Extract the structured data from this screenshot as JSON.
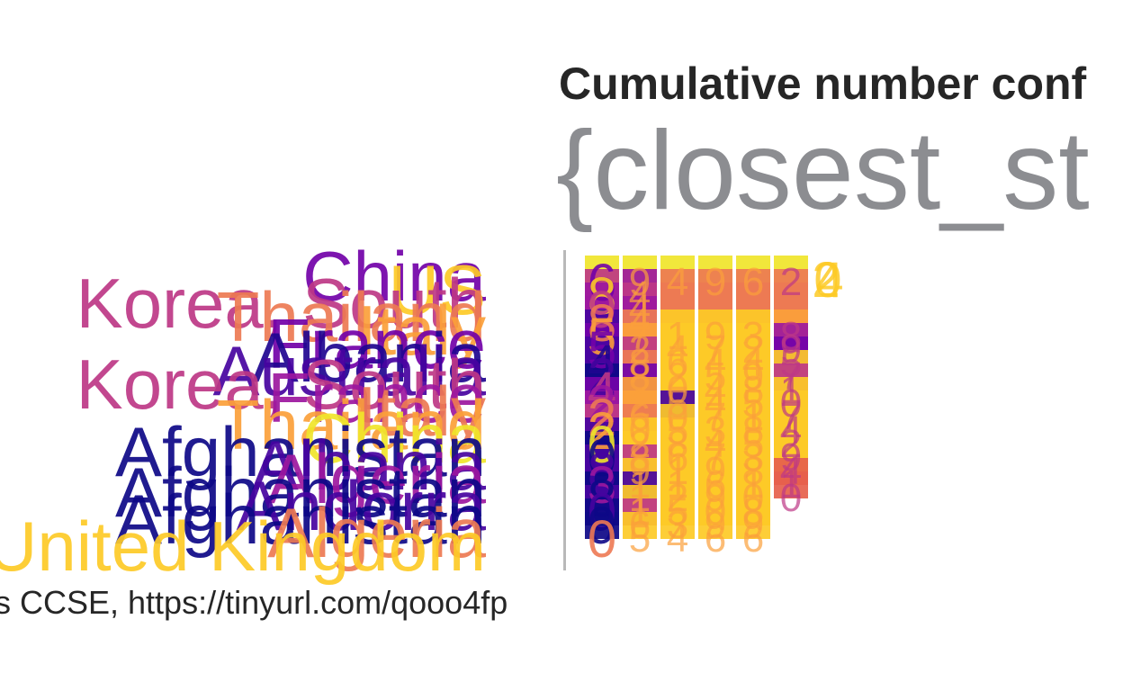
{
  "title": "Cumulative number conf",
  "subtitle": "{closest_st",
  "source": "s CCSE, https://tinyurl.com/qooo4fp",
  "chart_data": {
    "type": "table",
    "grid": false,
    "palette": [
      "#0d0887",
      "#46039f",
      "#7201a8",
      "#9c179e",
      "#bd3786",
      "#d8576b",
      "#ed7953",
      "#fb9f3a",
      "#fdca26",
      "#f0f921"
    ],
    "rows": [
      {
        "country": "China",
        "color": "#7201a8",
        "values": [
          "6",
          "9",
          "4",
          "9",
          "6",
          "2"
        ],
        "colors": [
          "#f0e52a",
          "#f0e52a",
          "#f0e52a",
          "#f0e52a",
          "#f0e52a",
          "#f0e52a"
        ]
      },
      {
        "country": "US",
        "color": "#fdca26",
        "values": [
          "8",
          "4",
          "",
          "",
          "",
          ""
        ],
        "colors": [
          "#bd3786",
          "#9c179e",
          "#ed7953",
          "#ed7953",
          "#ed7953",
          "#ed7953"
        ]
      },
      {
        "country": "Korea, South",
        "color": "#bd3786",
        "values": [
          "9",
          "4",
          "",
          "",
          "",
          ""
        ],
        "colors": [
          "#9c179e",
          "#bd3786",
          "#ed7953",
          "#ed7953",
          "#ed7953",
          "#ed7953"
        ]
      },
      {
        "country": "Thailand",
        "color": "#ed7953",
        "values": [
          "8",
          "4",
          "",
          "",
          "",
          ""
        ],
        "colors": [
          "#9c179e",
          "#9c179e",
          "#ed7953",
          "#ed7953",
          "#ed7953",
          "#ed7953"
        ]
      },
      {
        "country": "Italy",
        "color": "#fb9f3a",
        "values": [
          "5",
          "7",
          "1",
          "9",
          "3",
          "8"
        ],
        "colors": [
          "#46039f",
          "#ed7953",
          "#fdca26",
          "#fdca26",
          "#fdca26",
          "#fb9f3a"
        ]
      },
      {
        "country": "France",
        "color": "#7201a8",
        "values": [
          "5",
          "2",
          "4",
          "7",
          "2",
          "9"
        ],
        "colors": [
          "#7201a8",
          "#fb9f3a",
          "#fdca26",
          "#fdca26",
          "#fdca26",
          "#9c179e"
        ]
      },
      {
        "country": "Albania",
        "color": "#1f0590",
        "values": [
          "4",
          "8",
          "6",
          "4",
          "4",
          "5"
        ],
        "colors": [
          "#46039f",
          "#bd3786",
          "#fdca26",
          "#fdca26",
          "#fdca26",
          "#7201a8"
        ]
      },
      {
        "country": "Australia",
        "color": "#46039f",
        "values": [
          "2",
          "8",
          "2",
          "5",
          "9",
          "7"
        ],
        "colors": [
          "#46039f",
          "#ed7953",
          "#fdca26",
          "#fdca26",
          "#fdca26",
          "#fdca26"
        ]
      },
      {
        "country": "Korea, South",
        "color": "#bd3786",
        "values": [
          "4",
          "2",
          "0",
          "4",
          "8",
          "1"
        ],
        "colors": [
          "#0d0887",
          "#7201a8",
          "#fdca26",
          "#fdca26",
          "#fdca26",
          "#bd3786"
        ]
      },
      {
        "country": "France",
        "color": "#9c179e",
        "values": [
          "2",
          "2",
          "5",
          "4",
          "5",
          "0"
        ],
        "colors": [
          "#7201a8",
          "#fb9f3a",
          "#fdca26",
          "#fdca26",
          "#fdca26",
          "#fdca26"
        ]
      },
      {
        "country": "Italy",
        "color": "#ed7953",
        "values": [
          "2",
          "6",
          "0",
          "7",
          "1",
          "7"
        ],
        "colors": [
          "#9c179e",
          "#fb9f3a",
          "#46039f",
          "#fdca26",
          "#fdca26",
          "#fdca26"
        ]
      },
      {
        "country": "Thailand",
        "color": "#fb9f3a",
        "values": [
          "2",
          "0",
          "5",
          "3",
          "8",
          "4"
        ],
        "colors": [
          "#bd3786",
          "#ed7953",
          "#fdca26",
          "#fdca26",
          "#fdca26",
          "#fdca26"
        ]
      },
      {
        "country": "China",
        "color": "#f0e52a",
        "values": [
          "0",
          "2",
          "8",
          "4",
          "5",
          "2"
        ],
        "colors": [
          "#46039f",
          "#fdca26",
          "#fdca26",
          "#fdca26",
          "#fdca26",
          "#fdca26"
        ]
      },
      {
        "country": "Afghanistan",
        "color": "#0d0887",
        "values": [
          "0",
          "8",
          "6",
          "7",
          "3",
          "9"
        ],
        "colors": [
          "#0d0887",
          "#fdca26",
          "#fdca26",
          "#fdca26",
          "#fdca26",
          "#fdca26"
        ]
      },
      {
        "country": "Albania",
        "color": "#46039f",
        "values": [
          "8",
          "9",
          "1",
          "9",
          "8",
          "4"
        ],
        "colors": [
          "#46039f",
          "#bd3786",
          "#fdca26",
          "#fdca26",
          "#fdca26",
          "#fdca26"
        ]
      },
      {
        "country": "Algeria",
        "color": "#9c179e",
        "values": [
          "3",
          "1",
          "1",
          "6",
          "1",
          "1"
        ],
        "colors": [
          "#46039f",
          "#fdca26",
          "#fdca26",
          "#fdca26",
          "#fdca26",
          "#e65f4b"
        ]
      },
      {
        "country": "Afghanistan",
        "color": "#0d0887",
        "values": [
          "8",
          "1",
          "2",
          "9",
          "0",
          "0"
        ],
        "colors": [
          "#0d0887",
          "#46039f",
          "#fdca26",
          "#fdca26",
          "#fdca26",
          "#e65f4b"
        ]
      },
      {
        "country": "Andorra",
        "color": "#46039f",
        "values": [
          "0",
          "1",
          "5",
          "0",
          "8",
          ""
        ],
        "colors": [
          "#46039f",
          "#fdca26",
          "#fdca26",
          "#fdca26",
          "#fdca26",
          "#ffffff"
        ]
      },
      {
        "country": "Afghanistan",
        "color": "#0d0887",
        "values": [
          "9",
          "6",
          "3",
          "9",
          "9",
          ""
        ],
        "colors": [
          "#0d0887",
          "#bd3786",
          "#fdca26",
          "#fdca26",
          "#fdca26",
          "#ffffff"
        ]
      },
      {
        "country": "Algeria",
        "color": "#ed7953",
        "values": [
          "0",
          "5",
          "4",
          "6",
          "6",
          ""
        ],
        "colors": [
          "#0d0887",
          "#fdca26",
          "#fdca26",
          "#fdca26",
          "#fdca26",
          "#ffffff"
        ]
      },
      {
        "country": "United Kingdom",
        "color": "#fdca26",
        "values": [
          "",
          "",
          "",
          "",
          "",
          ""
        ],
        "colors": [
          "#ffffff",
          "#ffffff",
          "#ffffff",
          "#ffffff",
          "#ffffff",
          "#ffffff"
        ]
      }
    ],
    "extra_labels": [
      {
        "text": "2",
        "color": "#fdca26"
      },
      {
        "text": "0",
        "color": "#fdca26"
      },
      {
        "text": "4",
        "color": "#fdca26"
      }
    ]
  }
}
